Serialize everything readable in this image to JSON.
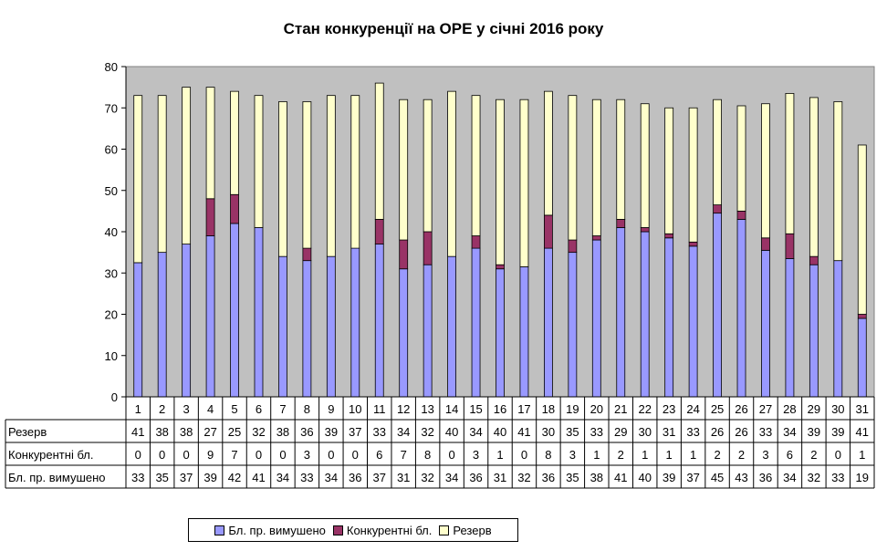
{
  "chart_data": {
    "type": "bar",
    "stacked": true,
    "title": "Стан конкуренції на ОРЕ  у січні 2016 року",
    "categories": [
      "1",
      "2",
      "3",
      "4",
      "5",
      "6",
      "7",
      "8",
      "9",
      "10",
      "11",
      "12",
      "13",
      "14",
      "15",
      "16",
      "17",
      "18",
      "19",
      "20",
      "21",
      "22",
      "23",
      "24",
      "25",
      "26",
      "27",
      "28",
      "29",
      "30",
      "31"
    ],
    "ylim": [
      0,
      80
    ],
    "yticks": [
      0,
      10,
      20,
      30,
      40,
      50,
      60,
      70,
      80
    ],
    "grid": false,
    "plot_background": "#c0c0c0",
    "series": [
      {
        "name": "Бл. пр. вимушено",
        "color": "#9999ff",
        "values": [
          32.5,
          35,
          37,
          39,
          42,
          41,
          34,
          33,
          34,
          36,
          37,
          31,
          32,
          34,
          36,
          31,
          31.5,
          36,
          35,
          38,
          41,
          40,
          38.5,
          36.5,
          44.5,
          43,
          35.5,
          33.5,
          32,
          33,
          19
        ],
        "labels": [
          "33",
          "35",
          "37",
          "39",
          "42",
          "41",
          "34",
          "33",
          "34",
          "36",
          "37",
          "31",
          "32",
          "34",
          "36",
          "31",
          "32",
          "36",
          "35",
          "38",
          "41",
          "40",
          "39",
          "37",
          "45",
          "43",
          "36",
          "34",
          "32",
          "33",
          "19"
        ]
      },
      {
        "name": "Конкурентні бл.",
        "color": "#993366",
        "values": [
          0,
          0,
          0,
          9,
          7,
          0,
          0,
          3,
          0,
          0,
          6,
          7,
          8,
          0,
          3,
          1,
          0,
          8,
          3,
          1,
          2,
          1,
          1,
          1,
          2,
          2,
          3,
          6,
          2,
          0,
          1
        ],
        "labels": [
          "0",
          "0",
          "0",
          "9",
          "7",
          "0",
          "0",
          "3",
          "0",
          "0",
          "6",
          "7",
          "8",
          "0",
          "3",
          "1",
          "0",
          "8",
          "3",
          "1",
          "2",
          "1",
          "1",
          "1",
          "2",
          "2",
          "3",
          "6",
          "2",
          "0",
          "1"
        ]
      },
      {
        "name": "Резерв",
        "color": "#ffffcc",
        "values": [
          40.5,
          38,
          38,
          27,
          25,
          32,
          37.5,
          35.5,
          39,
          37,
          33,
          34,
          32,
          40,
          34,
          40,
          40.5,
          30,
          35,
          33,
          29,
          30,
          30.5,
          32.5,
          25.5,
          25.5,
          32.5,
          34,
          38.5,
          38.5,
          41
        ],
        "labels": [
          "41",
          "38",
          "38",
          "27",
          "25",
          "32",
          "38",
          "36",
          "39",
          "37",
          "33",
          "34",
          "32",
          "40",
          "34",
          "40",
          "41",
          "30",
          "35",
          "33",
          "29",
          "30",
          "31",
          "33",
          "26",
          "26",
          "33",
          "34",
          "39",
          "39",
          "41"
        ]
      }
    ],
    "table_rows": [
      "Резерв",
      "Конкурентні бл.",
      "Бл. пр. вимушено"
    ],
    "legend_position": "bottom"
  }
}
